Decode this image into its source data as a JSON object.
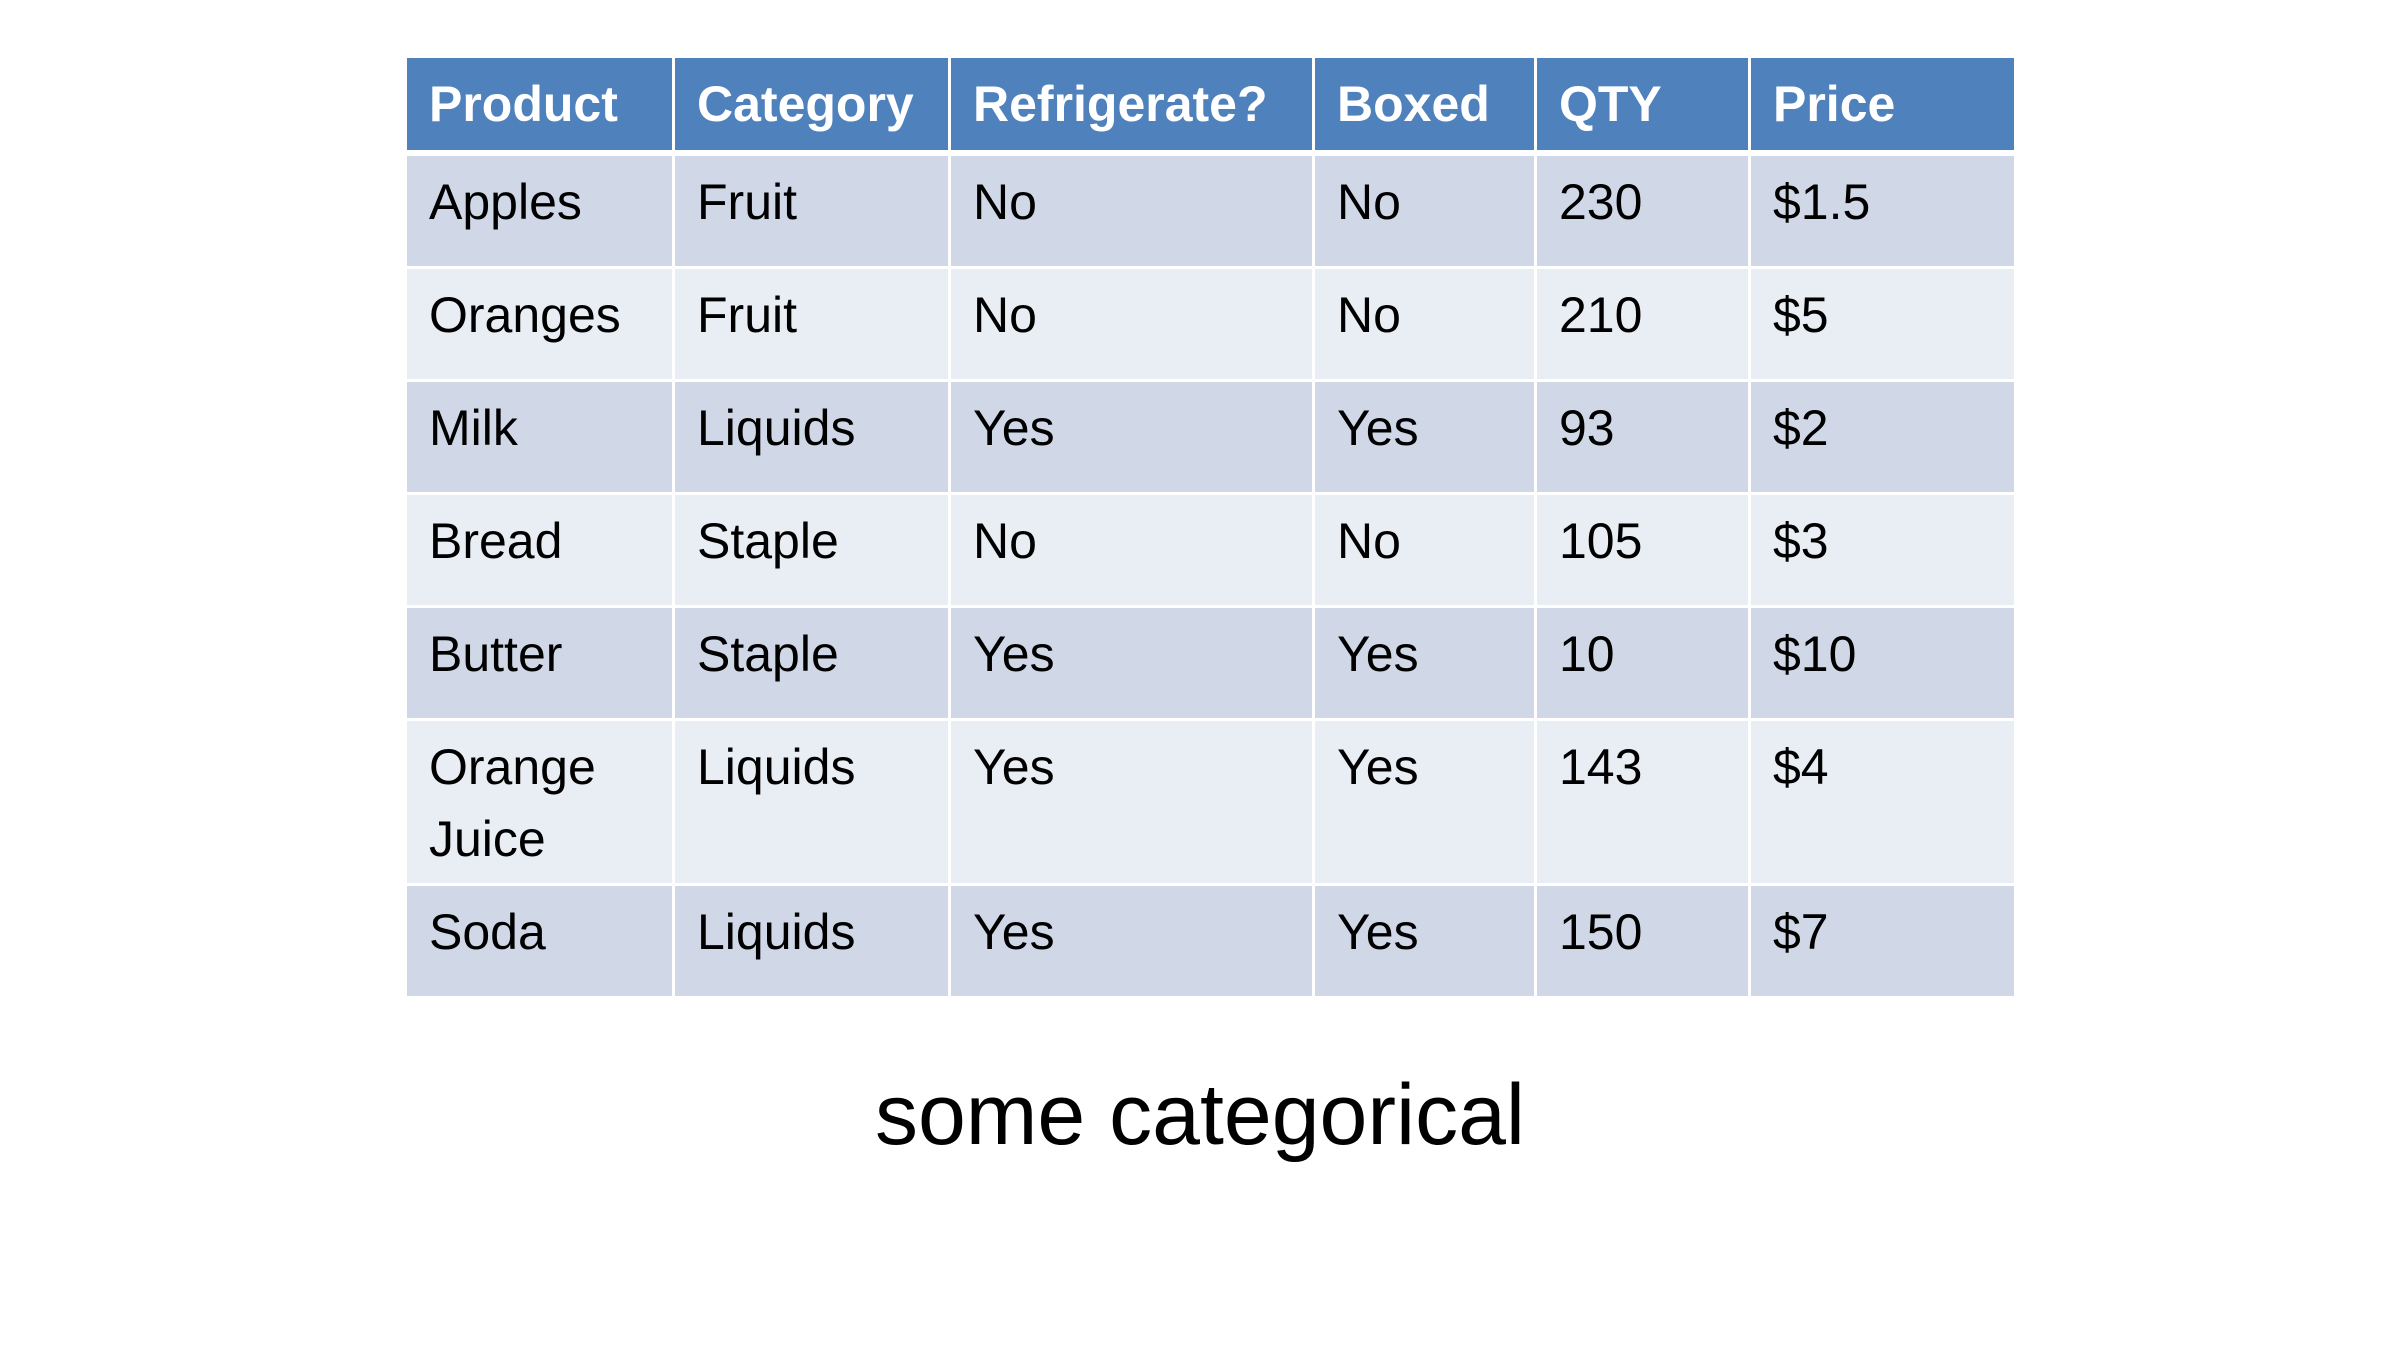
{
  "table": {
    "headers": [
      "Product",
      "Category",
      "Refrigerate?",
      "Boxed",
      "QTY",
      "Price"
    ],
    "rows": [
      [
        "Apples",
        "Fruit",
        "No",
        "No",
        "230",
        "$1.5"
      ],
      [
        "Oranges",
        "Fruit",
        "No",
        "No",
        "210",
        "$5"
      ],
      [
        "Milk",
        "Liquids",
        "Yes",
        "Yes",
        "93",
        "$2"
      ],
      [
        "Bread",
        "Staple",
        "No",
        "No",
        "105",
        "$3"
      ],
      [
        "Butter",
        "Staple",
        "Yes",
        "Yes",
        "10",
        "$10"
      ],
      [
        "Orange Juice",
        "Liquids",
        "Yes",
        "Yes",
        "143",
        "$4"
      ],
      [
        "Soda",
        "Liquids",
        "Yes",
        "Yes",
        "150",
        "$7"
      ]
    ]
  },
  "caption": "some categorical",
  "colors": {
    "header_bg": "#4f81bd",
    "row_odd_bg": "#d0d8e8",
    "row_even_bg": "#e9edf4"
  }
}
